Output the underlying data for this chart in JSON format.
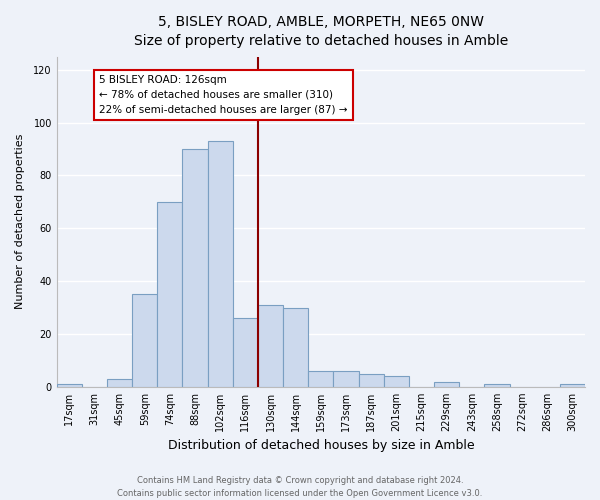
{
  "title": "5, BISLEY ROAD, AMBLE, MORPETH, NE65 0NW",
  "subtitle": "Size of property relative to detached houses in Amble",
  "xlabel": "Distribution of detached houses by size in Amble",
  "ylabel": "Number of detached properties",
  "bar_labels": [
    "17sqm",
    "31sqm",
    "45sqm",
    "59sqm",
    "74sqm",
    "88sqm",
    "102sqm",
    "116sqm",
    "130sqm",
    "144sqm",
    "159sqm",
    "173sqm",
    "187sqm",
    "201sqm",
    "215sqm",
    "229sqm",
    "243sqm",
    "258sqm",
    "272sqm",
    "286sqm",
    "300sqm"
  ],
  "bar_values": [
    1,
    0,
    3,
    35,
    70,
    90,
    93,
    26,
    31,
    30,
    6,
    6,
    5,
    4,
    0,
    2,
    0,
    1,
    0,
    0,
    1
  ],
  "bar_color": "#ccd9ed",
  "bar_edge_color": "#7a9fc2",
  "vline_color": "#8b0000",
  "annotation_title": "5 BISLEY ROAD: 126sqm",
  "annotation_line1": "← 78% of detached houses are smaller (310)",
  "annotation_line2": "22% of semi-detached houses are larger (87) →",
  "annotation_box_color": "#ffffff",
  "annotation_box_edge": "#cc0000",
  "ylim": [
    0,
    125
  ],
  "yticks": [
    0,
    20,
    40,
    60,
    80,
    100,
    120
  ],
  "footer1": "Contains HM Land Registry data © Crown copyright and database right 2024.",
  "footer2": "Contains public sector information licensed under the Open Government Licence v3.0.",
  "bg_color": "#eef2f9",
  "grid_color": "#ffffff",
  "title_fontsize": 10,
  "subtitle_fontsize": 9,
  "xlabel_fontsize": 9,
  "ylabel_fontsize": 8,
  "tick_fontsize": 7,
  "footer_fontsize": 6,
  "annotation_fontsize": 7.5
}
